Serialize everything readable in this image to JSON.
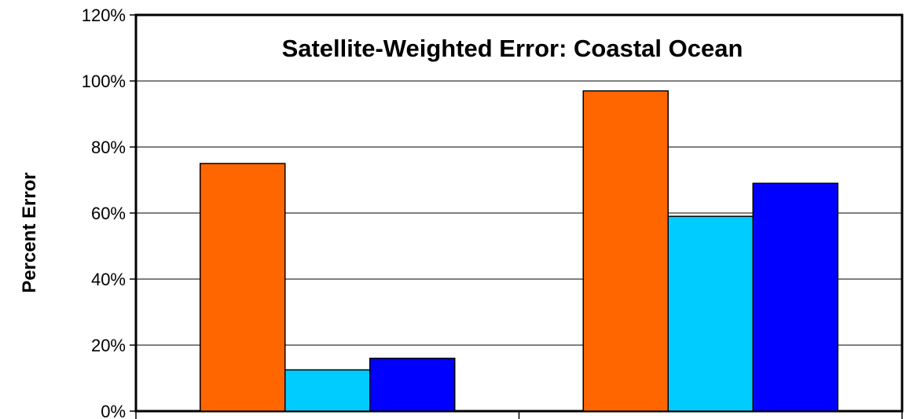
{
  "chart_data": {
    "type": "bar",
    "title": "Satellite-Weighted Error: Coastal Ocean",
    "xlabel": "",
    "ylabel": "Percent Error",
    "ylim": [
      0,
      120
    ],
    "y_ticks": [
      "0%",
      "20%",
      "40%",
      "60%",
      "80%",
      "100%",
      "120%"
    ],
    "categories": [
      "",
      ""
    ],
    "series": [
      {
        "color": "#FF6600",
        "values": [
          75,
          97
        ]
      },
      {
        "color": "#00CCFF",
        "values": [
          12.5,
          59
        ]
      },
      {
        "color": "#0000FF",
        "values": [
          16,
          69
        ]
      }
    ],
    "grid": true,
    "legend": "none"
  }
}
